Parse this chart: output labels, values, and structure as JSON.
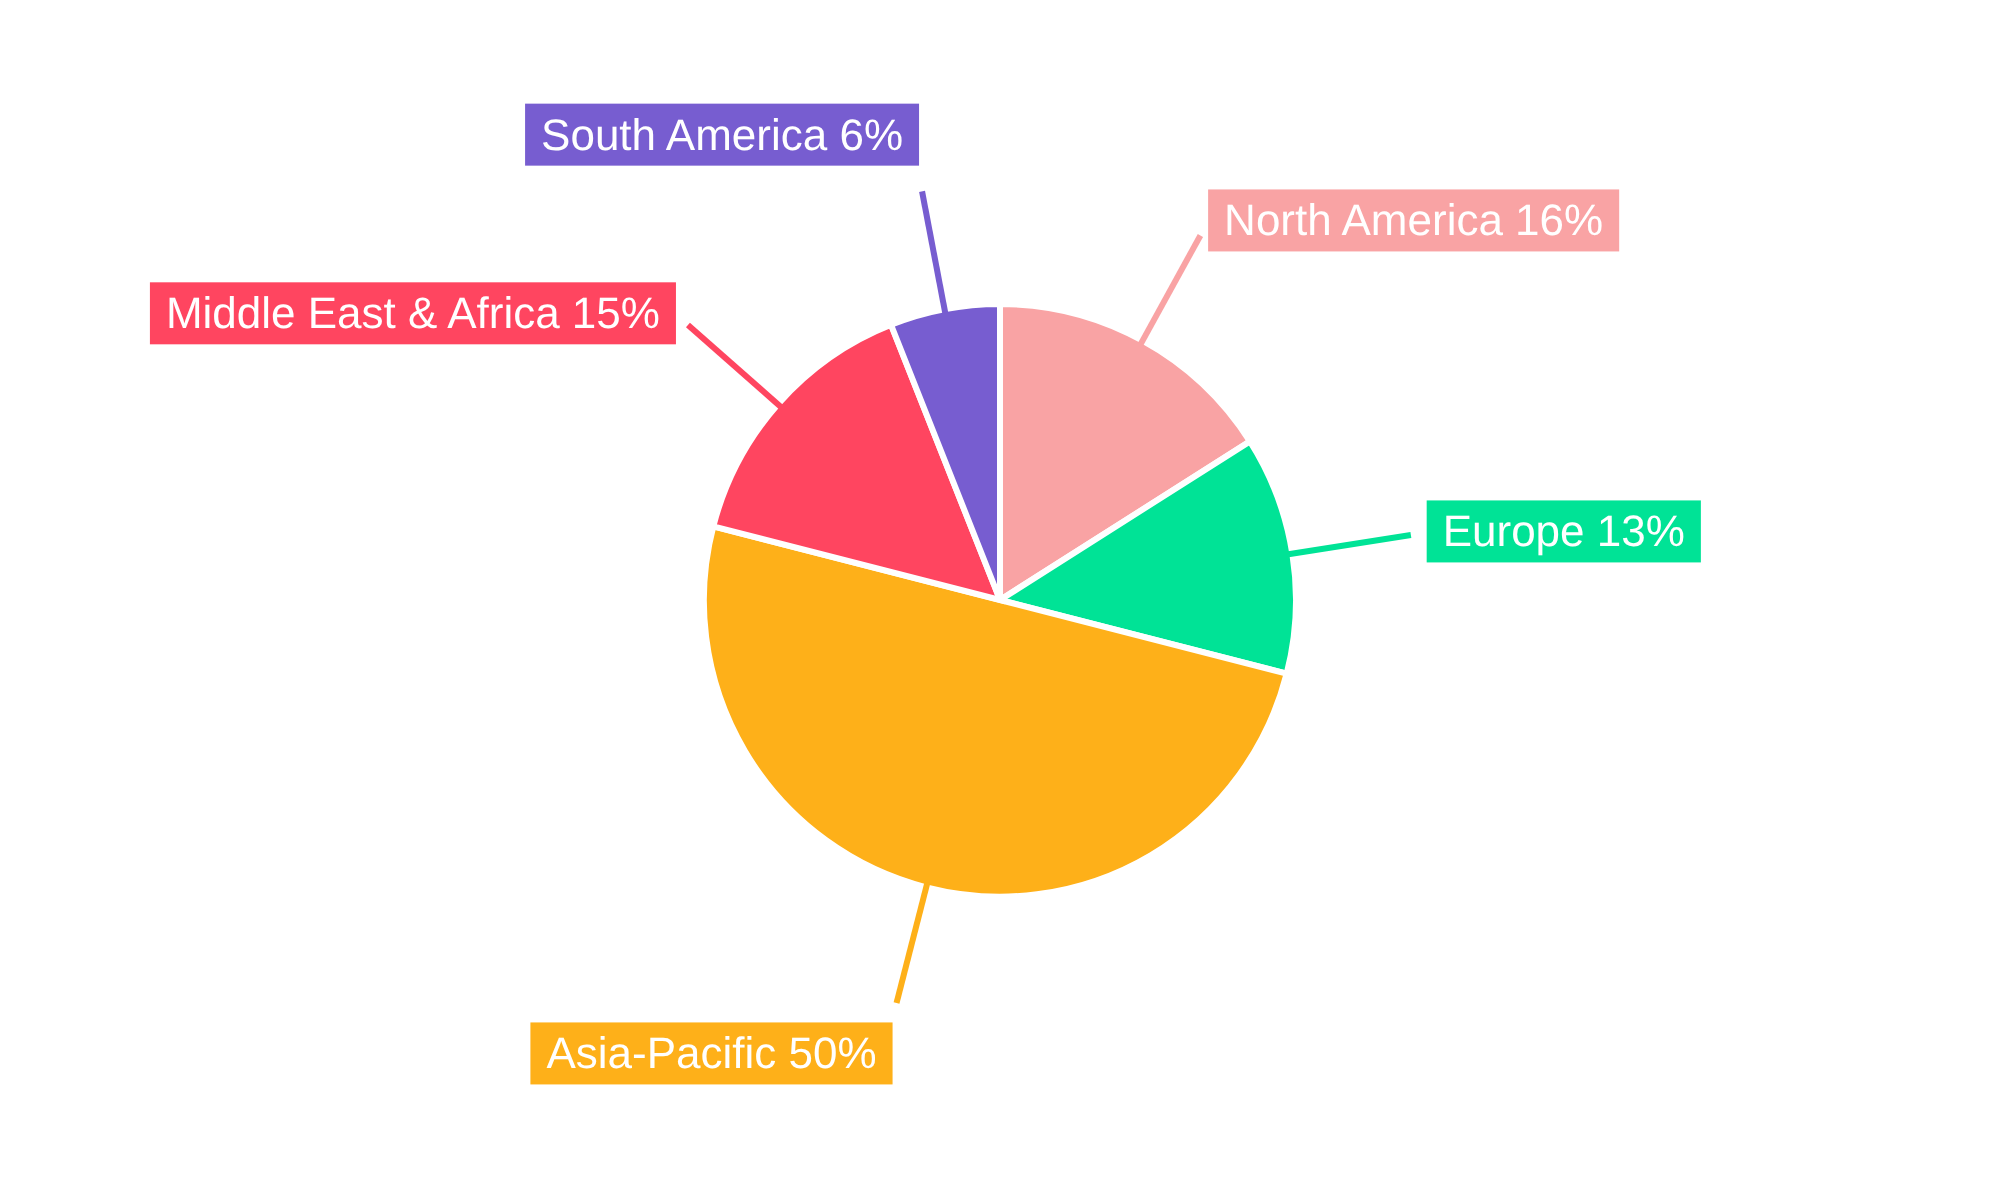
{
  "chart_data": {
    "type": "pie",
    "categories": [
      "North America",
      "Europe",
      "Asia-Pacific",
      "Middle East & Africa",
      "South America"
    ],
    "values": [
      16,
      13,
      50,
      15,
      6
    ],
    "colors": [
      "#f9a3a4",
      "#00e396",
      "#feb019",
      "#ff4560",
      "#775dd0"
    ],
    "value_labels": [
      "16%",
      "13%",
      "50%",
      "15%",
      "6%"
    ]
  }
}
